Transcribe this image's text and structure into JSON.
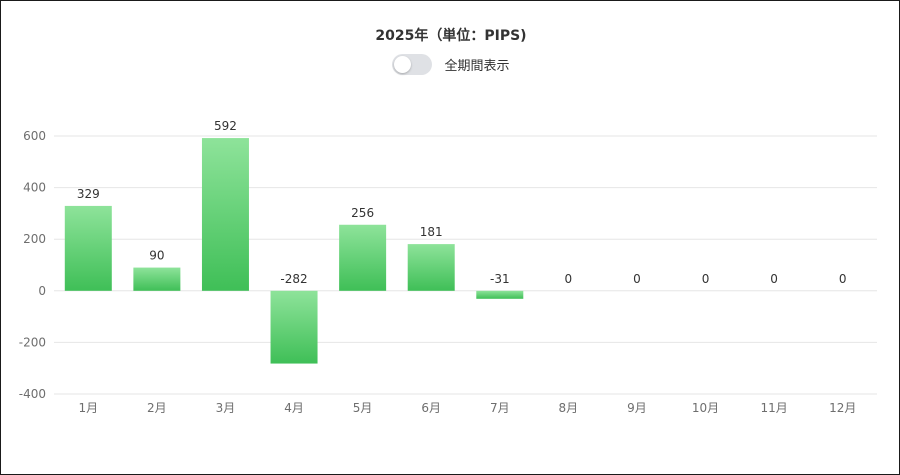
{
  "chart_title": "2025年（単位：PIPS)",
  "toggle": {
    "label": "全期間表示",
    "on": false
  },
  "colors": {
    "bar_top": "#8ee39a",
    "bar_bottom": "#3fbf57",
    "grid": "#e6e6e6",
    "tick_text": "#6e6e6e",
    "label_text": "#333333"
  },
  "chart_data": {
    "type": "bar",
    "title": "2025年（単位：PIPS)",
    "xlabel": "",
    "ylabel": "",
    "categories": [
      "1月",
      "2月",
      "3月",
      "4月",
      "5月",
      "6月",
      "7月",
      "8月",
      "9月",
      "10月",
      "11月",
      "12月"
    ],
    "values": [
      329,
      90,
      592,
      -282,
      256,
      181,
      -31,
      0,
      0,
      0,
      0,
      0
    ],
    "value_labels": [
      "329",
      "90",
      "592",
      "-282",
      "256",
      "181",
      "-31",
      "0",
      "0",
      "0",
      "0",
      "0"
    ],
    "ylim": [
      -400,
      600
    ],
    "yticks": [
      -400,
      -200,
      0,
      200,
      400,
      600
    ],
    "ytick_labels": [
      "-400",
      "-200",
      "0",
      "200",
      "400",
      "600"
    ],
    "grid": true,
    "legend": "none"
  }
}
